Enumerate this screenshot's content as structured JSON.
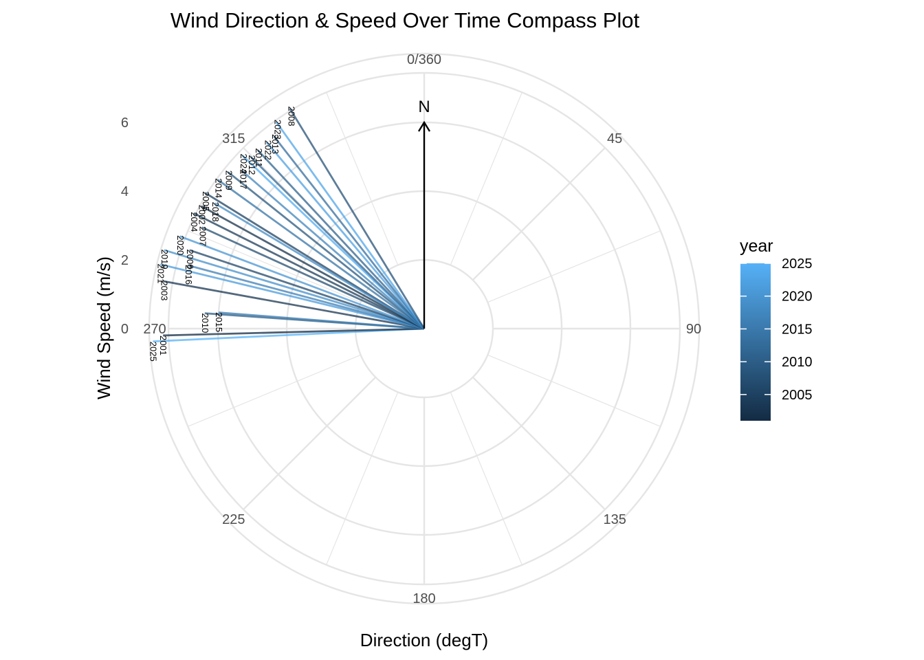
{
  "chart_data": {
    "type": "polar-segment",
    "title": "Wind Direction & Speed Over Time Compass Plot",
    "xlabel": "Direction (degT)",
    "ylabel": "Wind Speed (m/s)",
    "direction_ticks": [
      {
        "deg": 0,
        "label": "0/360"
      },
      {
        "deg": 45,
        "label": "45"
      },
      {
        "deg": 90,
        "label": "90"
      },
      {
        "deg": 135,
        "label": "135"
      },
      {
        "deg": 180,
        "label": "180"
      },
      {
        "deg": 225,
        "label": "225"
      },
      {
        "deg": 270,
        "label": "270"
      },
      {
        "deg": 315,
        "label": "315"
      }
    ],
    "speed_ticks": [
      0,
      2,
      4,
      6
    ],
    "speed_range": [
      0,
      6
    ],
    "north_arrow": {
      "label": "N",
      "speed": 6
    },
    "legend": {
      "title": "year",
      "ticks": [
        2005,
        2010,
        2015,
        2020,
        2025
      ],
      "range": [
        2001,
        2025
      ],
      "color_low": "#132B43",
      "color_high": "#56B1F7"
    },
    "segments": [
      {
        "year": 2025,
        "dir": 267.3,
        "speed": 5.9
      },
      {
        "year": 2001,
        "dir": 268.5,
        "speed": 5.6
      },
      {
        "year": 2010,
        "dir": 274.0,
        "speed": 4.4
      },
      {
        "year": 2015,
        "dir": 274.5,
        "speed": 4.0
      },
      {
        "year": 2003,
        "dir": 280.3,
        "speed": 5.7
      },
      {
        "year": 2021,
        "dir": 283.7,
        "speed": 5.9
      },
      {
        "year": 2016,
        "dir": 285.0,
        "speed": 5.1
      },
      {
        "year": 2019,
        "dir": 286.8,
        "speed": 5.9
      },
      {
        "year": 2006,
        "dir": 288.5,
        "speed": 5.2
      },
      {
        "year": 2020,
        "dir": 290.7,
        "speed": 5.6
      },
      {
        "year": 2007,
        "dir": 294.5,
        "speed": 5.1
      },
      {
        "year": 2004,
        "dir": 296.6,
        "speed": 5.5
      },
      {
        "year": 2002,
        "dir": 298.8,
        "speed": 5.4
      },
      {
        "year": 2005,
        "dir": 301.8,
        "speed": 5.5
      },
      {
        "year": 2018,
        "dir": 300.9,
        "speed": 5.1
      },
      {
        "year": 2014,
        "dir": 305.8,
        "speed": 5.4
      },
      {
        "year": 2009,
        "dir": 308.6,
        "speed": 5.3
      },
      {
        "year": 2024,
        "dir": 313.6,
        "speed": 5.3
      },
      {
        "year": 2017,
        "dir": 310.9,
        "speed": 5.0
      },
      {
        "year": 2012,
        "dir": 314.7,
        "speed": 5.1
      },
      {
        "year": 2011,
        "dir": 317.0,
        "speed": 5.1
      },
      {
        "year": 2022,
        "dir": 319.8,
        "speed": 5.1
      },
      {
        "year": 2013,
        "dir": 322.0,
        "speed": 5.1
      },
      {
        "year": 2023,
        "dir": 324.4,
        "speed": 5.4
      },
      {
        "year": 2008,
        "dir": 328.6,
        "speed": 5.5
      }
    ],
    "grid": true
  }
}
